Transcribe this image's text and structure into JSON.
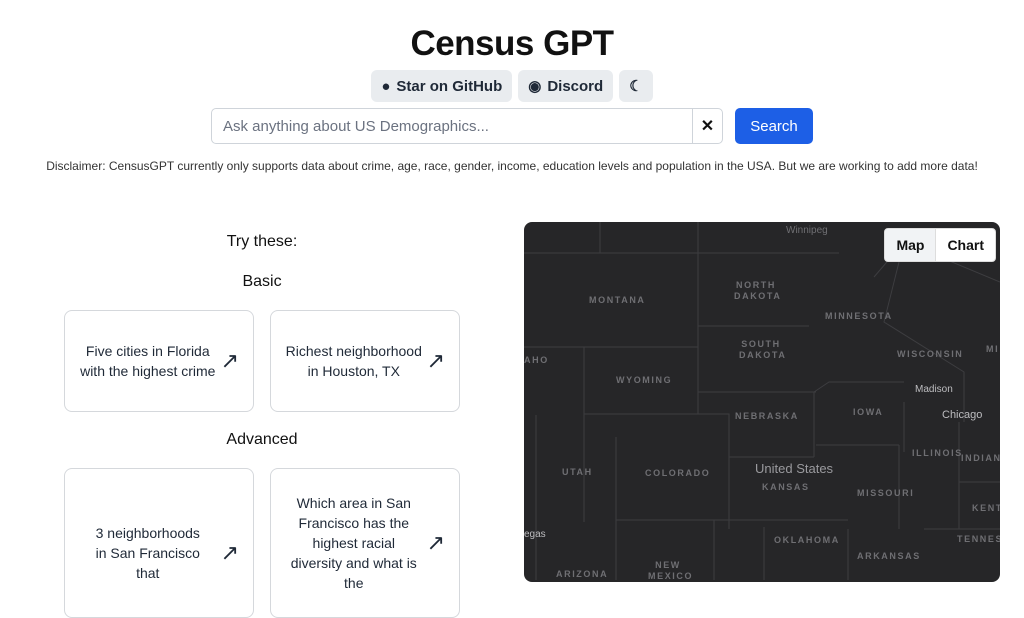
{
  "header": {
    "title": "Census GPT",
    "github_label": "Star on GitHub",
    "discord_label": "Discord",
    "theme_icon": "moon-icon"
  },
  "search": {
    "placeholder": "Ask anything about US Demographics...",
    "value": "",
    "clear_label": "✕",
    "button_label": "Search"
  },
  "disclaimer": "Disclaimer: CensusGPT currently only supports data about crime, age, race, gender, income, education levels and population in the USA. But we are working to add more data!",
  "suggestions": {
    "heading": "Try these:",
    "basic_label": "Basic",
    "advanced_label": "Advanced",
    "basic": [
      "Five cities in Florida with the highest crime",
      "Richest neighborhood in Houston, TX"
    ],
    "advanced": [
      "3 neighborhoods in San Francisco that",
      "Which area in San Francisco has the highest racial diversity and what is the"
    ]
  },
  "map": {
    "tabs": [
      "Map",
      "Chart"
    ],
    "active_tab": "Map",
    "labels": [
      "Winnipeg",
      "MONTANA",
      "NORTH DAKOTA",
      "MINNESOTA",
      "SOUTH DAKOTA",
      "WISCONSIN",
      "WYOMING",
      "NEBRASKA",
      "IOWA",
      "UTAH",
      "COLORADO",
      "KANSAS",
      "ILLINOIS",
      "INDIANA",
      "MISSOURI",
      "OKLAHOMA",
      "ARKANSAS",
      "NEW MEXICO",
      "ARIZONA",
      "KENT",
      "TENNESS",
      "AHO",
      "MI"
    ],
    "cities": [
      "Madison",
      "Chicago",
      "United States",
      "egas"
    ]
  }
}
